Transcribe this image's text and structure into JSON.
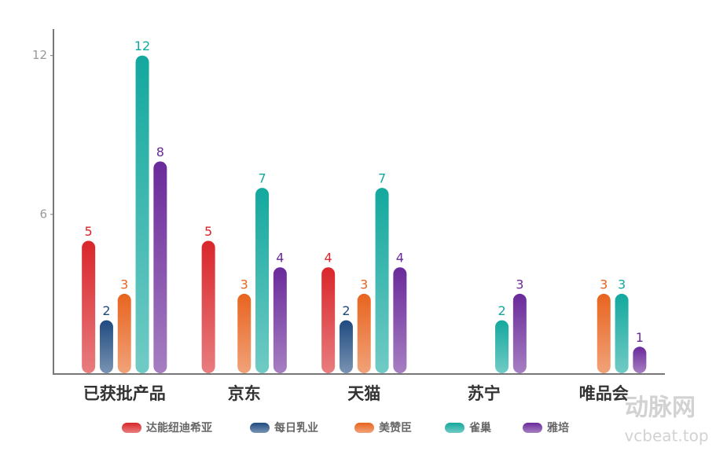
{
  "chart_data": {
    "type": "bar",
    "categories": [
      "已获批产品",
      "京东",
      "天猫",
      "苏宁",
      "唯品会"
    ],
    "series": [
      {
        "name": "达能纽迪希亚",
        "color": "#d9262a",
        "values": [
          5,
          5,
          4,
          null,
          null
        ]
      },
      {
        "name": "每日乳业",
        "color": "#1f4b80",
        "values": [
          2,
          null,
          2,
          null,
          null
        ]
      },
      {
        "name": "美赞臣",
        "color": "#e8641f",
        "values": [
          3,
          3,
          3,
          null,
          3
        ]
      },
      {
        "name": "雀巢",
        "color": "#13a89e",
        "values": [
          12,
          7,
          7,
          2,
          3
        ]
      },
      {
        "name": "雅培",
        "color": "#6a2a9a",
        "values": [
          8,
          4,
          4,
          3,
          1
        ]
      }
    ],
    "ylim": [
      0,
      13
    ],
    "yticks": [
      6,
      12
    ],
    "grid": false,
    "legend": "bottom",
    "watermark": [
      "动脉网",
      "vcbeat.top"
    ]
  }
}
